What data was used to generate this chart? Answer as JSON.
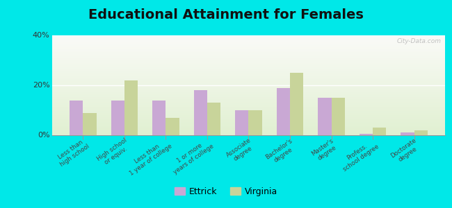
{
  "title": "Educational Attainment for Females",
  "categories": [
    "Less than\nhigh school",
    "High school\nor equiv.",
    "Less than\n1 year of college",
    "1 or more\nyears of college",
    "Associate\ndegree",
    "Bachelor's\ndegree",
    "Master's\ndegree",
    "Profess.\nschool degree",
    "Doctorate\ndegree"
  ],
  "ettrick": [
    14.0,
    14.0,
    14.0,
    18.0,
    10.0,
    19.0,
    15.0,
    0.5,
    1.0
  ],
  "virginia": [
    9.0,
    22.0,
    7.0,
    13.0,
    10.0,
    25.0,
    15.0,
    3.0,
    2.0
  ],
  "ettrick_color": "#c9a8d4",
  "virginia_color": "#c8d49a",
  "ylim": [
    0,
    40
  ],
  "yticks": [
    0,
    20,
    40
  ],
  "ytick_labels": [
    "0%",
    "20%",
    "40%"
  ],
  "background_outer": "#00e8e8",
  "watermark": "City-Data.com",
  "legend_ettrick": "Ettrick",
  "legend_virginia": "Virginia",
  "title_fontsize": 14,
  "tick_fontsize": 6.2
}
